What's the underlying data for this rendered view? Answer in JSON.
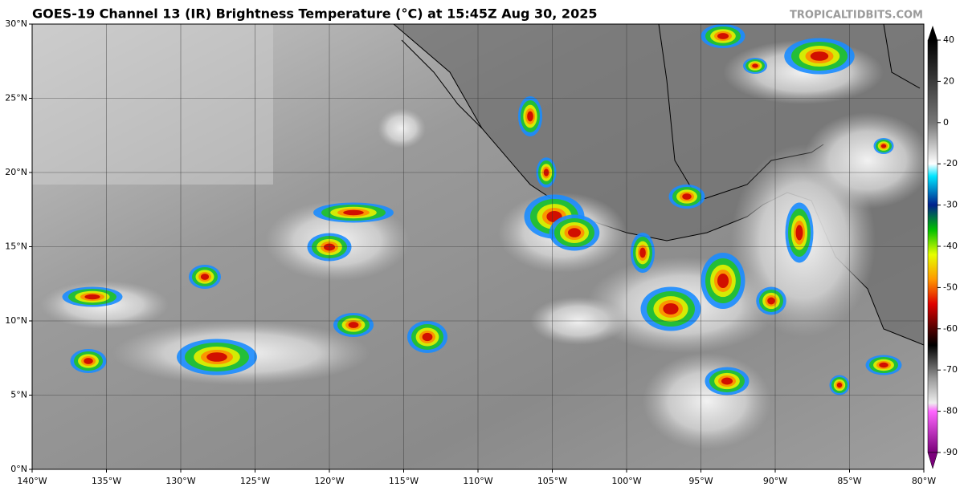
{
  "map": {
    "title": "GOES-19 Channel 13 (IR) Brightness Temperature (°C) at 15:45Z Aug 30, 2025",
    "credit": "TROPICALTIDBITS.COM",
    "lon_range": [
      -140,
      -80
    ],
    "lat_range": [
      0,
      30
    ],
    "lon_ticks": [
      {
        "value": -140,
        "label": "140°W"
      },
      {
        "value": -135,
        "label": "135°W"
      },
      {
        "value": -130,
        "label": "130°W"
      },
      {
        "value": -125,
        "label": "125°W"
      },
      {
        "value": -120,
        "label": "120°W"
      },
      {
        "value": -115,
        "label": "115°W"
      },
      {
        "value": -110,
        "label": "110°W"
      },
      {
        "value": -105,
        "label": "105°W"
      },
      {
        "value": -100,
        "label": "100°W"
      },
      {
        "value": -95,
        "label": "95°W"
      },
      {
        "value": -90,
        "label": "90°W"
      },
      {
        "value": -85,
        "label": "85°W"
      },
      {
        "value": -80,
        "label": "80°W"
      }
    ],
    "lat_ticks": [
      {
        "value": 0,
        "label": "0°N"
      },
      {
        "value": 5,
        "label": "5°N"
      },
      {
        "value": 10,
        "label": "10°N"
      },
      {
        "value": 15,
        "label": "15°N"
      },
      {
        "value": 20,
        "label": "20°N"
      },
      {
        "value": 25,
        "label": "25°N"
      },
      {
        "value": 30,
        "label": "30°N"
      }
    ],
    "colorbar_ticks": [
      40,
      20,
      0,
      -20,
      -30,
      -40,
      -50,
      -60,
      -70,
      -80,
      -90
    ]
  }
}
